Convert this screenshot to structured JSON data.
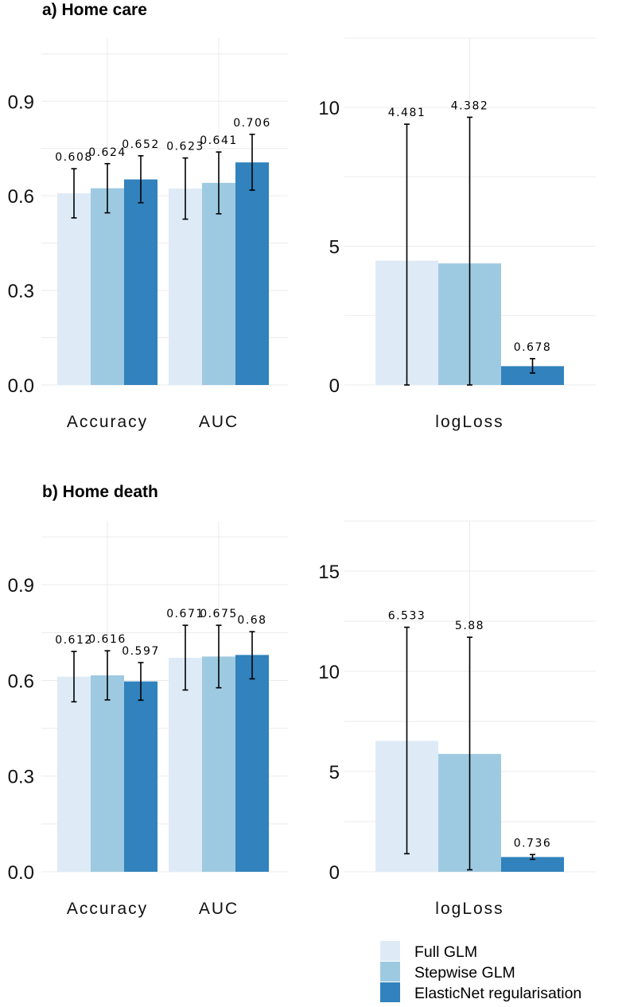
{
  "colors": {
    "Full GLM": "#deebf7",
    "Stepwise GLM": "#9ecae1",
    "ElasticNet regularisation": "#3182bd"
  },
  "legend": [
    "Full GLM",
    "Stepwise GLM",
    "ElasticNet regularisation"
  ],
  "chart_data": [
    {
      "type": "bar",
      "title": "a) Home care",
      "categories": [
        "Accuracy",
        "AUC"
      ],
      "ylim": [
        0,
        1.1
      ],
      "yticks": [
        0.0,
        0.3,
        0.6,
        0.9
      ],
      "ytick_labels": [
        "0.0",
        "0.3",
        "0.6",
        "0.9"
      ],
      "grid": true,
      "series": [
        {
          "name": "Full GLM",
          "values": [
            0.608,
            0.623
          ],
          "labels": [
            "0.608",
            "0.623"
          ],
          "err_low": [
            0.53,
            0.526
          ],
          "err_high": [
            0.686,
            0.72
          ]
        },
        {
          "name": "Stepwise GLM",
          "values": [
            0.624,
            0.641
          ],
          "labels": [
            "0.624",
            "0.641"
          ],
          "err_low": [
            0.546,
            0.543
          ],
          "err_high": [
            0.702,
            0.739
          ]
        },
        {
          "name": "ElasticNet regularisation",
          "values": [
            0.652,
            0.706
          ],
          "labels": [
            "0.652",
            "0.706"
          ],
          "err_low": [
            0.578,
            0.618
          ],
          "err_high": [
            0.727,
            0.795
          ]
        }
      ]
    },
    {
      "type": "bar",
      "title": "",
      "categories": [
        "logLoss"
      ],
      "ylim": [
        0,
        12.5
      ],
      "yticks": [
        0,
        5,
        10
      ],
      "ytick_labels": [
        "0",
        "5",
        "10"
      ],
      "grid": true,
      "series": [
        {
          "name": "Full GLM",
          "values": [
            4.481
          ],
          "labels": [
            "4.481"
          ],
          "err_low": [
            0
          ],
          "err_high": [
            9.4
          ]
        },
        {
          "name": "Stepwise GLM",
          "values": [
            4.382
          ],
          "labels": [
            "4.382"
          ],
          "err_low": [
            0
          ],
          "err_high": [
            9.65
          ]
        },
        {
          "name": "ElasticNet regularisation",
          "values": [
            0.678
          ],
          "labels": [
            "0.678"
          ],
          "err_low": [
            0.43
          ],
          "err_high": [
            0.95
          ]
        }
      ]
    },
    {
      "type": "bar",
      "title": "b) Home death",
      "categories": [
        "Accuracy",
        "AUC"
      ],
      "ylim": [
        0,
        1.1
      ],
      "yticks": [
        0.0,
        0.3,
        0.6,
        0.9
      ],
      "ytick_labels": [
        "0.0",
        "0.3",
        "0.6",
        "0.9"
      ],
      "grid": true,
      "series": [
        {
          "name": "Full GLM",
          "values": [
            0.612,
            0.671
          ],
          "labels": [
            "0.612",
            "0.671"
          ],
          "err_low": [
            0.533,
            0.57
          ],
          "err_high": [
            0.691,
            0.773
          ]
        },
        {
          "name": "Stepwise GLM",
          "values": [
            0.616,
            0.675
          ],
          "labels": [
            "0.616",
            "0.675"
          ],
          "err_low": [
            0.539,
            0.577
          ],
          "err_high": [
            0.693,
            0.773
          ]
        },
        {
          "name": "ElasticNet regularisation",
          "values": [
            0.597,
            0.68
          ],
          "labels": [
            "0.597",
            "0.68"
          ],
          "err_low": [
            0.538,
            0.605
          ],
          "err_high": [
            0.656,
            0.753
          ]
        }
      ]
    },
    {
      "type": "bar",
      "title": "",
      "categories": [
        "logLoss"
      ],
      "ylim": [
        0,
        17.5
      ],
      "yticks": [
        0,
        5,
        10,
        15
      ],
      "ytick_labels": [
        "0",
        "5",
        "10",
        "15"
      ],
      "grid": true,
      "series": [
        {
          "name": "Full GLM",
          "values": [
            6.533
          ],
          "labels": [
            "6.533"
          ],
          "err_low": [
            0.9
          ],
          "err_high": [
            12.2
          ]
        },
        {
          "name": "Stepwise GLM",
          "values": [
            5.88
          ],
          "labels": [
            "5.88"
          ],
          "err_low": [
            0.1
          ],
          "err_high": [
            11.7
          ]
        },
        {
          "name": "ElasticNet regularisation",
          "values": [
            0.736
          ],
          "labels": [
            "0.736"
          ],
          "err_low": [
            0.62
          ],
          "err_high": [
            0.86
          ]
        }
      ]
    }
  ]
}
